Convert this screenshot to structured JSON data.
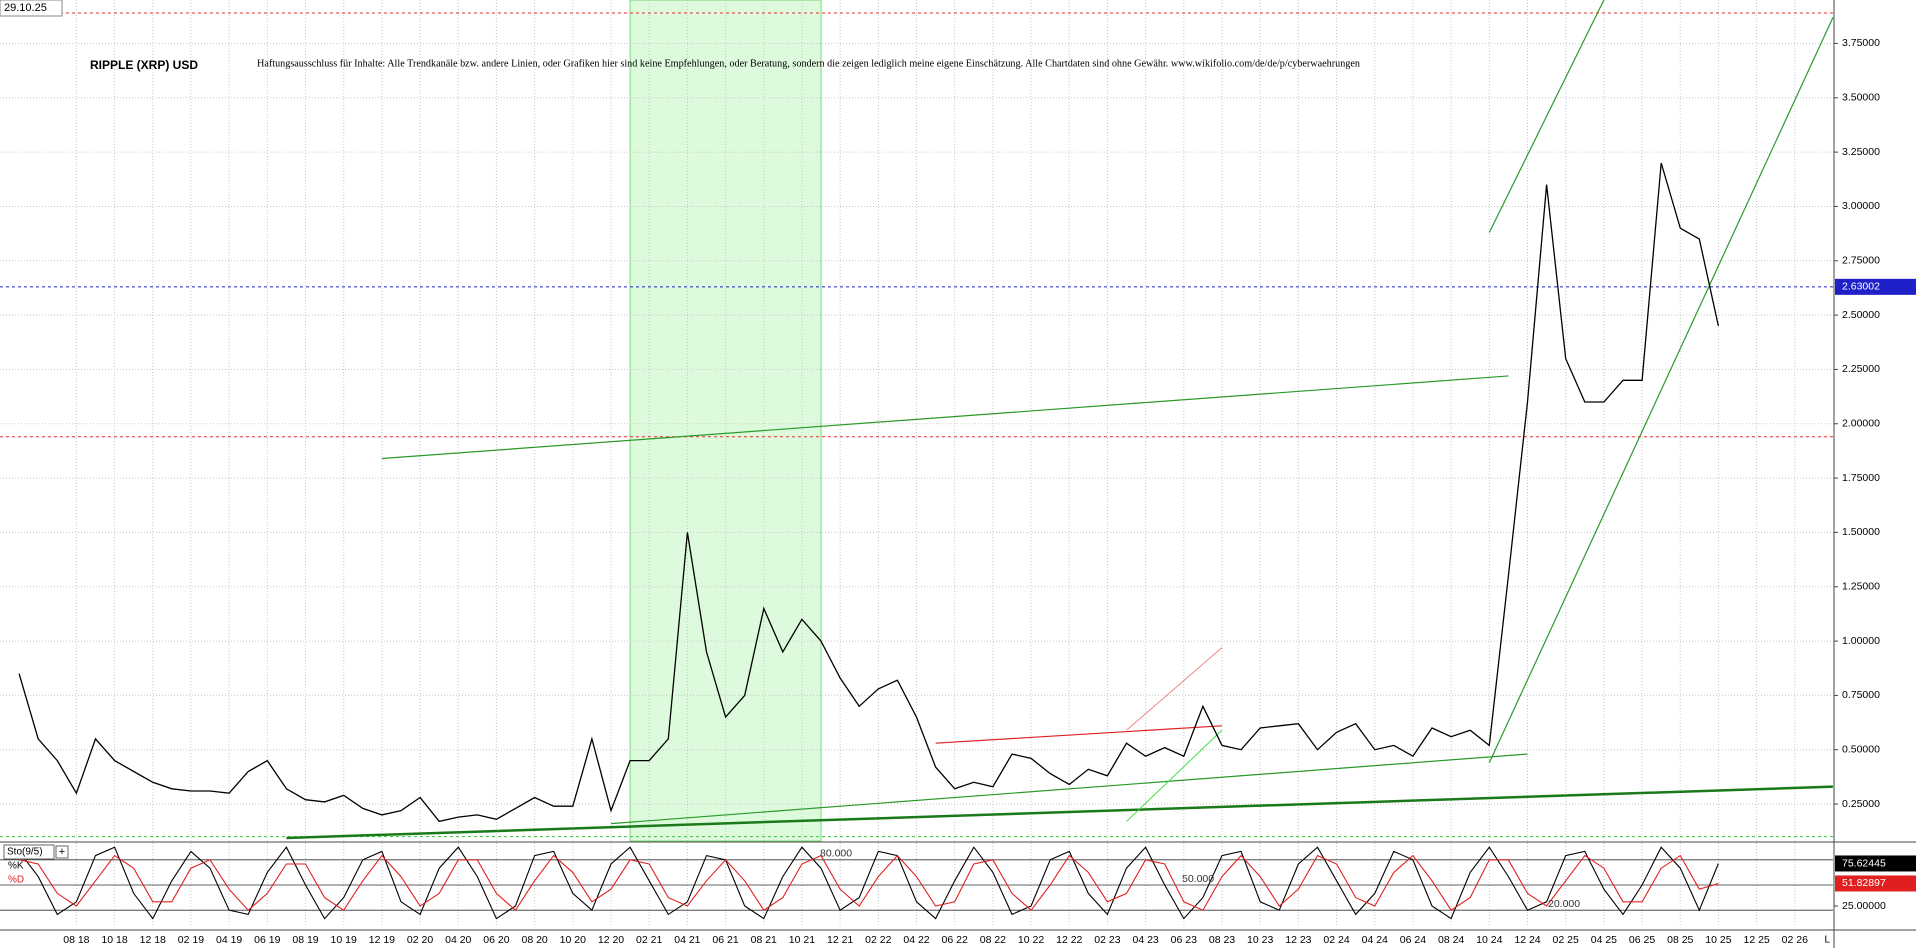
{
  "chart_data": [
    {
      "type": "line",
      "title": "RIPPLE (XRP) USD",
      "subtitle": "Haftungsausschluss für Inhalte: Alle Trendkanäle bzw. andere Linien, oder Grafiken hier sind keine Empfehlungen, oder Beratung, sondern die zeigen lediglich meine eigene Einschätzung. Alle Chartdaten sind ohne Gewähr.  www.wikifolio.com/de/de/p/cyberwaehrungen",
      "date": "29.10.25",
      "x": [
        "05 18",
        "06 18",
        "07 18",
        "08 18",
        "09 18",
        "10 18",
        "11 18",
        "12 18",
        "01 19",
        "02 19",
        "03 19",
        "04 19",
        "05 19",
        "06 19",
        "07 19",
        "08 19",
        "09 19",
        "10 19",
        "11 19",
        "12 19",
        "01 20",
        "02 20",
        "03 20",
        "04 20",
        "05 20",
        "06 20",
        "07 20",
        "08 20",
        "09 20",
        "10 20",
        "11 20",
        "12 20",
        "01 21",
        "02 21",
        "03 21",
        "04 21",
        "05 21",
        "06 21",
        "07 21",
        "08 21",
        "09 21",
        "10 21",
        "11 21",
        "12 21",
        "01 22",
        "02 22",
        "03 22",
        "04 22",
        "05 22",
        "06 22",
        "07 22",
        "08 22",
        "09 22",
        "10 22",
        "11 22",
        "12 22",
        "01 23",
        "02 23",
        "03 23",
        "04 23",
        "05 23",
        "06 23",
        "07 23",
        "08 23",
        "09 23",
        "10 23",
        "11 23",
        "12 23",
        "01 24",
        "02 24",
        "03 24",
        "04 24",
        "05 24",
        "06 24",
        "07 24",
        "08 24",
        "09 24",
        "10 24",
        "11 24",
        "12 24",
        "01 25",
        "02 25",
        "03 25",
        "04 25",
        "05 25",
        "06 25",
        "07 25",
        "08 25",
        "09 25",
        "10 25"
      ],
      "series": [
        {
          "name": "XRP",
          "color": "#000000",
          "values": [
            0.85,
            0.55,
            0.45,
            0.3,
            0.55,
            0.45,
            0.4,
            0.35,
            0.32,
            0.31,
            0.31,
            0.3,
            0.4,
            0.45,
            0.32,
            0.27,
            0.26,
            0.29,
            0.23,
            0.2,
            0.22,
            0.28,
            0.17,
            0.19,
            0.2,
            0.18,
            0.23,
            0.28,
            0.24,
            0.24,
            0.55,
            0.22,
            0.45,
            0.45,
            0.55,
            1.5,
            0.95,
            0.65,
            0.75,
            1.15,
            0.95,
            1.1,
            1.0,
            0.83,
            0.7,
            0.78,
            0.82,
            0.65,
            0.42,
            0.32,
            0.35,
            0.33,
            0.48,
            0.46,
            0.39,
            0.34,
            0.41,
            0.38,
            0.53,
            0.47,
            0.51,
            0.47,
            0.7,
            0.52,
            0.5,
            0.6,
            0.61,
            0.62,
            0.5,
            0.58,
            0.62,
            0.5,
            0.52,
            0.47,
            0.6,
            0.56,
            0.59,
            0.52,
            1.3,
            2.1,
            3.1,
            2.3,
            2.1,
            2.1,
            2.2,
            2.2,
            3.2,
            2.9,
            2.85,
            2.45
          ]
        }
      ],
      "xlim": [
        "04 18",
        "04 26"
      ],
      "xticks": [
        "08 18",
        "10 18",
        "12 18",
        "02 19",
        "04 19",
        "06 19",
        "08 19",
        "10 19",
        "12 19",
        "02 20",
        "04 20",
        "06 20",
        "08 20",
        "10 20",
        "12 20",
        "02 21",
        "04 21",
        "06 21",
        "08 21",
        "10 21",
        "12 21",
        "02 22",
        "04 22",
        "06 22",
        "08 22",
        "10 22",
        "12 22",
        "02 23",
        "04 23",
        "06 23",
        "08 23",
        "10 23",
        "12 23",
        "02 24",
        "04 24",
        "06 24",
        "08 24",
        "10 24",
        "12 24",
        "02 25",
        "04 25",
        "06 25",
        "08 25",
        "10 25",
        "12 25",
        "02 26"
      ],
      "ylim": [
        0.08,
        3.95
      ],
      "yticks": [
        {
          "value": 0.25,
          "label": "0.25000"
        },
        {
          "value": 0.5,
          "label": "0.50000"
        },
        {
          "value": 0.75,
          "label": "0.75000"
        },
        {
          "value": 1.0,
          "label": "1.00000"
        },
        {
          "value": 1.25,
          "label": "1.25000"
        },
        {
          "value": 1.5,
          "label": "1.50000"
        },
        {
          "value": 1.75,
          "label": "1.75000"
        },
        {
          "value": 2.0,
          "label": "2.00000"
        },
        {
          "value": 2.25,
          "label": "2.25000"
        },
        {
          "value": 2.5,
          "label": "2.50000"
        },
        {
          "value": 2.75,
          "label": "2.75000"
        },
        {
          "value": 3.0,
          "label": "3.00000"
        },
        {
          "value": 3.25,
          "label": "3.25000"
        },
        {
          "value": 3.5,
          "label": "3.50000"
        },
        {
          "value": 3.75,
          "label": "3.75000"
        }
      ],
      "grid": true,
      "hlines": [
        {
          "value": 3.89,
          "color": "#e03030"
        },
        {
          "value": 1.94,
          "color": "#e03030"
        },
        {
          "value": 2.63002,
          "color": "#2020c8",
          "labeled": true
        },
        {
          "value": 0.1,
          "color": "#40c040"
        }
      ],
      "highlight": {
        "from": "01 21",
        "to": "11 21",
        "color": "#90ee90"
      },
      "trendlines": [
        {
          "from": [
            "12 19",
            1.84
          ],
          "to": [
            "11 24",
            2.22
          ],
          "color": "#2a9a2a",
          "width": 1.2
        },
        {
          "from": [
            "07 19",
            0.094
          ],
          "to": [
            "04 26",
            0.33
          ],
          "color": "#1a7a1a",
          "width": 2.5
        },
        {
          "from": [
            "12 20",
            0.16
          ],
          "to": [
            "12 24",
            0.48
          ],
          "color": "#2a9a2a",
          "width": 1.2
        },
        {
          "from": [
            "10 24",
            0.44
          ],
          "to": [
            "04 26",
            3.87
          ],
          "color": "#2a9a2a",
          "width": 1.2
        },
        {
          "from": [
            "10 24",
            2.88
          ],
          "to": [
            "04 25",
            3.95
          ],
          "color": "#2a9a2a",
          "width": 1.2
        },
        {
          "from": [
            "05 22",
            0.53
          ],
          "to": [
            "08 23",
            0.61
          ],
          "color": "#e02020",
          "width": 1.2
        },
        {
          "from": [
            "03 23",
            0.59
          ],
          "to": [
            "08 23",
            0.97
          ],
          "color": "#f07070",
          "width": 0.8
        },
        {
          "from": [
            "03 23",
            0.17
          ],
          "to": [
            "08 23",
            0.59
          ],
          "color": "#40e040",
          "width": 1
        }
      ]
    },
    {
      "type": "line",
      "title": "Sto(9/5)",
      "series": [
        {
          "name": "%K",
          "color": "#000000",
          "values": [
            90,
            60,
            15,
            30,
            85,
            95,
            40,
            10,
            55,
            90,
            70,
            20,
            15,
            65,
            95,
            50,
            10,
            35,
            80,
            90,
            30,
            15,
            70,
            95,
            60,
            10,
            25,
            85,
            90,
            40,
            20,
            75,
            95,
            55,
            15,
            30,
            85,
            80,
            25,
            10,
            60,
            95,
            70,
            20,
            35,
            90,
            85,
            30,
            10,
            55,
            95,
            65,
            15,
            25,
            80,
            90,
            40,
            15,
            70,
            95,
            50,
            10,
            35,
            85,
            90,
            30,
            20,
            75,
            95,
            55,
            15,
            40,
            90,
            80,
            25,
            10,
            65,
            95,
            60,
            20,
            30,
            85,
            90,
            45,
            15,
            50,
            95,
            70,
            20,
            75.62445
          ]
        },
        {
          "name": "%D",
          "color": "#e02020",
          "values": [
            80,
            75,
            40,
            25,
            55,
            85,
            70,
            30,
            30,
            70,
            80,
            45,
            20,
            40,
            75,
            75,
            35,
            20,
            55,
            85,
            60,
            25,
            40,
            80,
            80,
            40,
            20,
            55,
            85,
            65,
            30,
            45,
            80,
            75,
            35,
            25,
            55,
            80,
            55,
            20,
            35,
            75,
            85,
            45,
            25,
            60,
            85,
            60,
            25,
            30,
            75,
            80,
            40,
            20,
            50,
            85,
            65,
            30,
            40,
            80,
            75,
            30,
            20,
            60,
            85,
            60,
            25,
            45,
            85,
            75,
            35,
            25,
            65,
            85,
            55,
            20,
            35,
            80,
            80,
            40,
            25,
            55,
            85,
            70,
            30,
            30,
            70,
            85,
            45,
            51.82897
          ]
        }
      ],
      "ylim": [
        0,
        100
      ],
      "yticks": [
        {
          "value": 25,
          "label": "25.00000"
        }
      ],
      "levels": [
        {
          "value": 80,
          "label": "80.000"
        },
        {
          "value": 50,
          "label": "50.000"
        },
        {
          "value": 20,
          "label": "20.000"
        }
      ],
      "corner": "L"
    }
  ]
}
